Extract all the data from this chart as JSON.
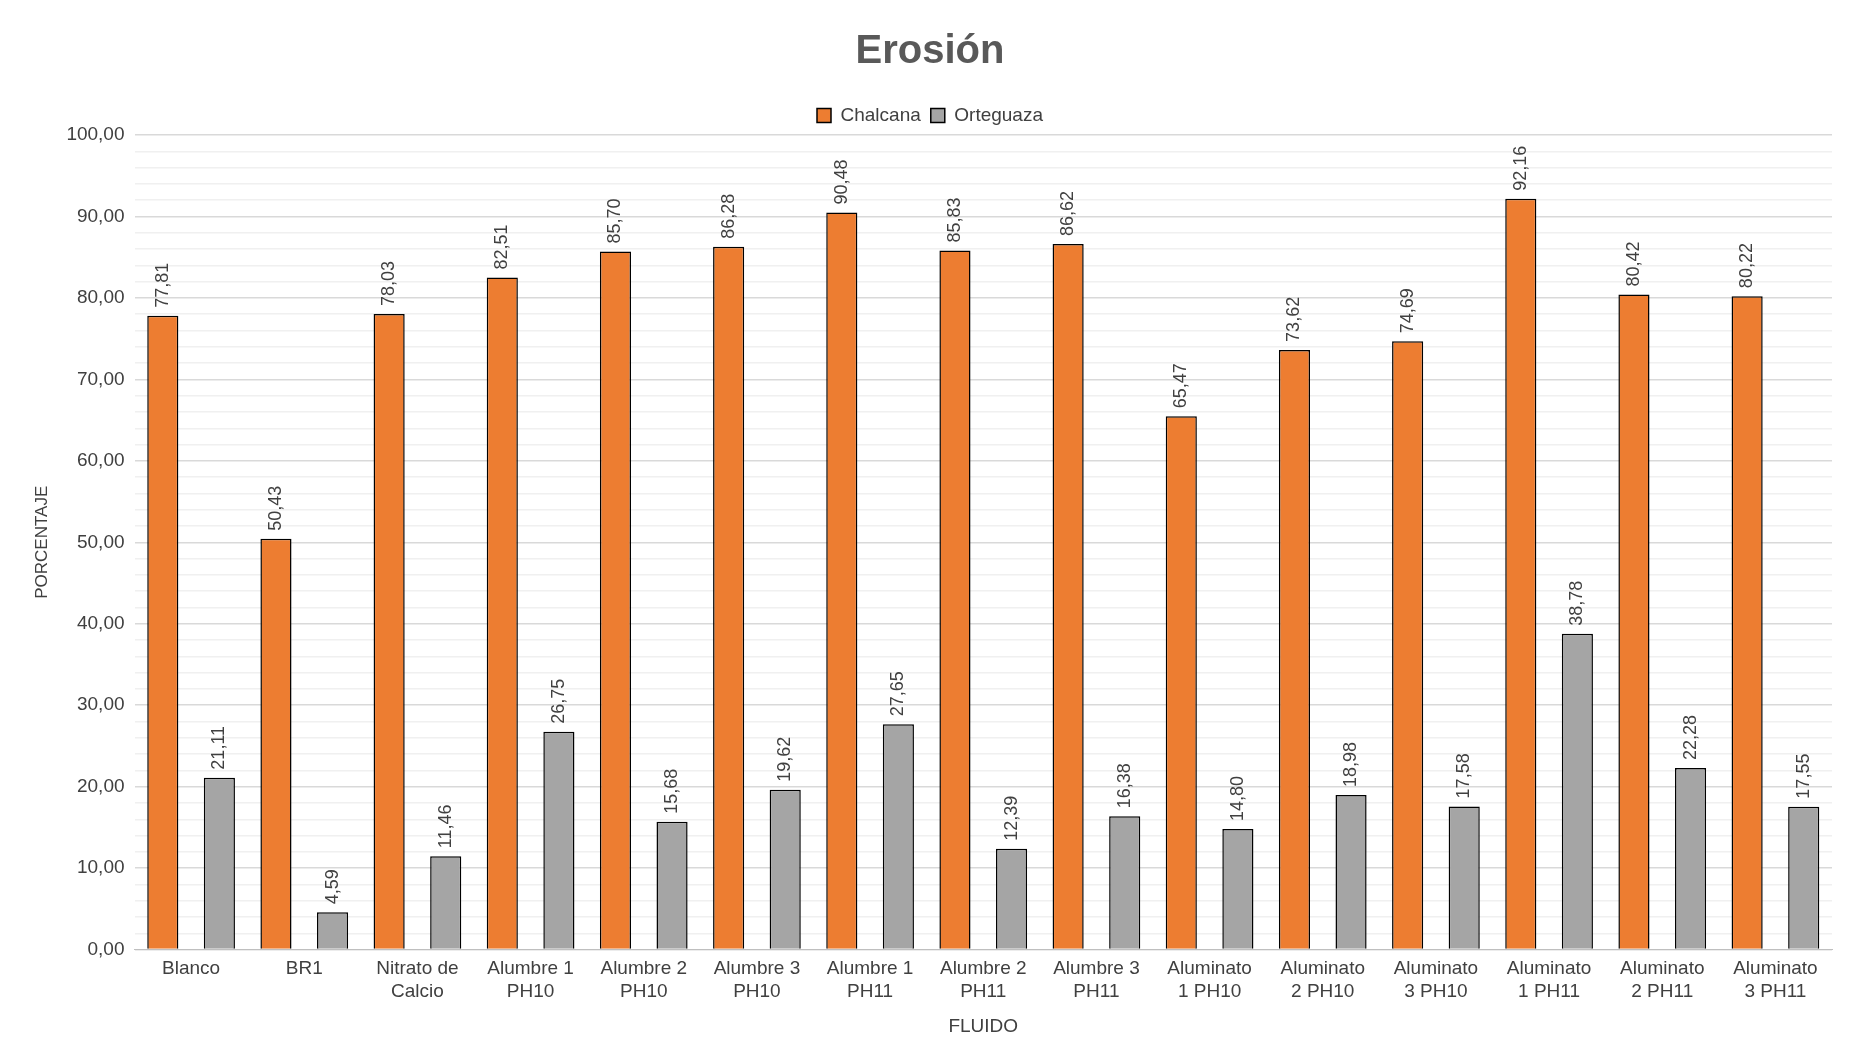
{
  "chart_data": {
    "type": "bar",
    "title": "Erosión",
    "xlabel": "FLUIDO",
    "ylabel": "PORCENTAJE",
    "categories": [
      "Blanco",
      "BR1",
      "Nitrato de Calcio",
      "Alumbre 1 PH10",
      "Alumbre 2 PH10",
      "Alumbre 3 PH10",
      "Alumbre 1 PH11",
      "Alumbre 2 PH11",
      "Alumbre 3 PH11",
      "Aluminato 1 PH10",
      "Aluminato 2 PH10",
      "Aluminato 3 PH10",
      "Aluminato 1 PH11",
      "Aluminato 2 PH11",
      "Aluminato 3 PH11"
    ],
    "series": [
      {
        "name": "Chalcana",
        "color": "#ed7d31",
        "values": [
          77.81,
          50.43,
          78.03,
          82.51,
          85.7,
          86.28,
          90.48,
          85.83,
          86.62,
          65.47,
          73.62,
          74.69,
          92.16,
          80.42,
          80.22
        ],
        "value_labels": [
          "77,81",
          "50,43",
          "78,03",
          "82,51",
          "85,70",
          "86,28",
          "90,48",
          "85,83",
          "86,62",
          "65,47",
          "73,62",
          "74,69",
          "92,16",
          "80,42",
          "80,22"
        ]
      },
      {
        "name": "Orteguaza",
        "color": "#a5a5a5",
        "values": [
          21.11,
          4.59,
          11.46,
          26.75,
          15.68,
          19.62,
          27.65,
          12.39,
          16.38,
          14.8,
          18.98,
          17.58,
          38.78,
          22.28,
          17.55
        ],
        "value_labels": [
          "21,11",
          "4,59",
          "11,46",
          "26,75",
          "15,68",
          "19,62",
          "27,65",
          "12,39",
          "16,38",
          "14,80",
          "18,98",
          "17,58",
          "38,78",
          "22,28",
          "17,55"
        ]
      }
    ],
    "ylim": [
      0,
      100
    ],
    "yticks": [
      {
        "value": 0,
        "label": "0,00"
      },
      {
        "value": 2,
        "label": null
      },
      {
        "value": 4,
        "label": null
      },
      {
        "value": 6,
        "label": null
      },
      {
        "value": 8,
        "label": null
      },
      {
        "value": 10,
        "label": "10,00"
      },
      {
        "value": 12,
        "label": null
      },
      {
        "value": 14,
        "label": null
      },
      {
        "value": 16,
        "label": null
      },
      {
        "value": 18,
        "label": null
      },
      {
        "value": 20,
        "label": "20,00"
      },
      {
        "value": 22,
        "label": null
      },
      {
        "value": 24,
        "label": null
      },
      {
        "value": 26,
        "label": null
      },
      {
        "value": 28,
        "label": null
      },
      {
        "value": 30,
        "label": "30,00"
      },
      {
        "value": 32,
        "label": null
      },
      {
        "value": 34,
        "label": null
      },
      {
        "value": 36,
        "label": null
      },
      {
        "value": 38,
        "label": null
      },
      {
        "value": 40,
        "label": "40,00"
      },
      {
        "value": 42,
        "label": null
      },
      {
        "value": 44,
        "label": null
      },
      {
        "value": 46,
        "label": null
      },
      {
        "value": 48,
        "label": null
      },
      {
        "value": 50,
        "label": "50,00"
      },
      {
        "value": 52,
        "label": null
      },
      {
        "value": 54,
        "label": null
      },
      {
        "value": 56,
        "label": null
      },
      {
        "value": 58,
        "label": null
      },
      {
        "value": 60,
        "label": "60,00"
      },
      {
        "value": 62,
        "label": null
      },
      {
        "value": 64,
        "label": null
      },
      {
        "value": 66,
        "label": null
      },
      {
        "value": 68,
        "label": null
      },
      {
        "value": 70,
        "label": "70,00"
      },
      {
        "value": 72,
        "label": null
      },
      {
        "value": 74,
        "label": null
      },
      {
        "value": 76,
        "label": null
      },
      {
        "value": 78,
        "label": null
      },
      {
        "value": 80,
        "label": "80,00"
      },
      {
        "value": 82,
        "label": null
      },
      {
        "value": 84,
        "label": null
      },
      {
        "value": 86,
        "label": null
      },
      {
        "value": 88,
        "label": null
      },
      {
        "value": 90,
        "label": "90,00"
      },
      {
        "value": 92,
        "label": null
      },
      {
        "value": 94,
        "label": null
      },
      {
        "value": 96,
        "label": null
      },
      {
        "value": 98,
        "label": null
      },
      {
        "value": 100,
        "label": "100,00"
      }
    ],
    "grid": "y",
    "legend": "top"
  }
}
